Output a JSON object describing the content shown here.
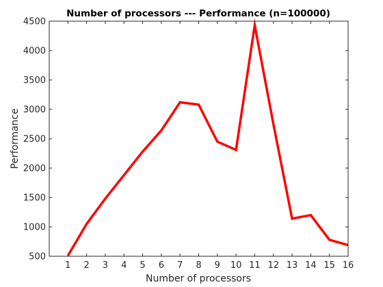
{
  "chart_data": {
    "type": "line",
    "title": "Number of processors --- Performance (n=100000)",
    "xlabel": "Number of processors",
    "ylabel": "Performance",
    "xlim": [
      0,
      16
    ],
    "ylim": [
      500,
      4500
    ],
    "xticks": [
      "1",
      "2",
      "3",
      "4",
      "5",
      "6",
      "7",
      "8",
      "9",
      "10",
      "11",
      "12",
      "13",
      "14",
      "15",
      "16"
    ],
    "yticks": [
      "500",
      "1000",
      "1500",
      "2000",
      "2500",
      "3000",
      "3500",
      "4000",
      "4500"
    ],
    "grid": false,
    "series": [
      {
        "color": "#ff0000",
        "x": [
          1,
          2,
          3,
          4,
          5,
          6,
          7,
          8,
          9,
          10,
          11,
          12,
          13,
          14,
          15,
          16
        ],
        "y": [
          510,
          1050,
          1480,
          1880,
          2280,
          2640,
          3120,
          3080,
          2450,
          2310,
          4430,
          2750,
          1140,
          1200,
          780,
          690
        ]
      }
    ]
  }
}
